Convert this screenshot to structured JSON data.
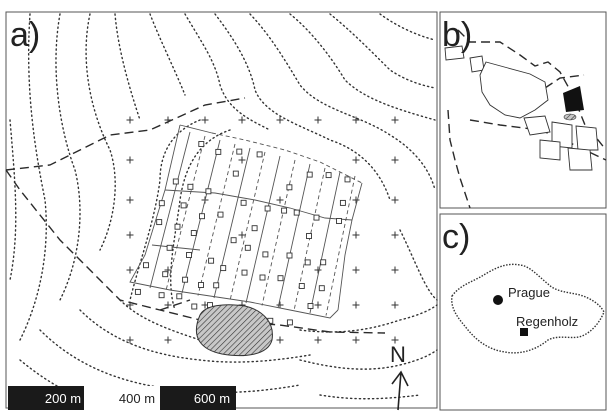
{
  "panels": {
    "a": {
      "letter": "a)"
    },
    "b": {
      "letter": "b)"
    },
    "c": {
      "letter": "c)"
    }
  },
  "scale_bar": {
    "labels": [
      "200 m",
      "400 m",
      "600 m"
    ]
  },
  "north_arrow": {
    "letter": "N"
  },
  "locations": [
    {
      "name": "Prague",
      "marker": "circle"
    },
    {
      "name": "Regenholz",
      "marker": "square"
    }
  ],
  "colors": {
    "ink": "#222222",
    "scale_dark": "#1a1a1a",
    "hatch_fill": "#bbbbbb",
    "background": "#ffffff"
  }
}
